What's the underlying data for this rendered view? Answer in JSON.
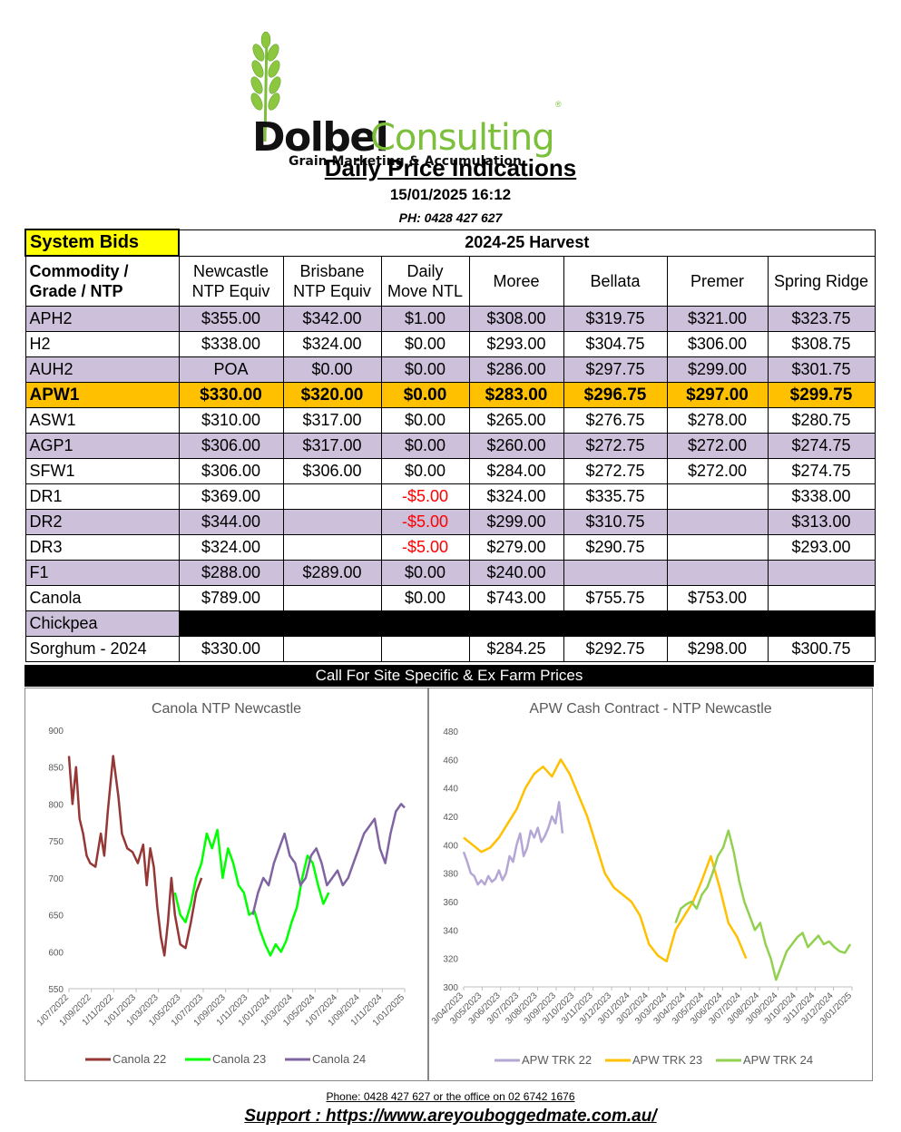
{
  "logo": {
    "name_part1": "Dolbel",
    "name_part2": "Consulting",
    "tagline": "Grain Marketing & Accumulation",
    "reg": "®"
  },
  "title": "Daily Price Indications",
  "datetime": "15/01/2025 16:12",
  "phone": "PH: 0428 427 627",
  "table": {
    "system_bids": "System Bids",
    "harvest": "2024-25 Harvest",
    "columns": [
      "Commodity / Grade / NTP",
      "Newcastle NTP Equiv",
      "Brisbane NTP Equiv",
      "Daily Move NTL",
      "Moree",
      "Bellata",
      "Premer",
      "Spring Ridge"
    ],
    "col0_line1": "Commodity /",
    "col0_line2": "Grade / NTP",
    "col1_line1": "Newcastle",
    "col1_line2": "NTP Equiv",
    "col2_line1": "Brisbane",
    "col2_line2": "NTP Equiv",
    "col3_line1": "Daily",
    "col3_line2": "Move NTL",
    "rows": [
      {
        "grade": "APH2",
        "newcastle": "$355.00",
        "brisbane": "$342.00",
        "move": "$1.00",
        "moree": "$308.00",
        "bellata": "$319.75",
        "premer": "$321.00",
        "spring": "$323.75"
      },
      {
        "grade": "H2",
        "newcastle": "$338.00",
        "brisbane": "$324.00",
        "move": "$0.00",
        "moree": "$293.00",
        "bellata": "$304.75",
        "premer": "$306.00",
        "spring": "$308.75"
      },
      {
        "grade": "AUH2",
        "newcastle": "POA",
        "brisbane": "$0.00",
        "move": "$0.00",
        "moree": "$286.00",
        "bellata": "$297.75",
        "premer": "$299.00",
        "spring": "$301.75"
      },
      {
        "grade": "APW1",
        "newcastle": "$330.00",
        "brisbane": "$320.00",
        "move": "$0.00",
        "moree": "$283.00",
        "bellata": "$296.75",
        "premer": "$297.00",
        "spring": "$299.75"
      },
      {
        "grade": "ASW1",
        "newcastle": "$310.00",
        "brisbane": "$317.00",
        "move": "$0.00",
        "moree": "$265.00",
        "bellata": "$276.75",
        "premer": "$278.00",
        "spring": "$280.75"
      },
      {
        "grade": "AGP1",
        "newcastle": "$306.00",
        "brisbane": "$317.00",
        "move": "$0.00",
        "moree": "$260.00",
        "bellata": "$272.75",
        "premer": "$272.00",
        "spring": "$274.75"
      },
      {
        "grade": "SFW1",
        "newcastle": "$306.00",
        "brisbane": "$306.00",
        "move": "$0.00",
        "moree": "$284.00",
        "bellata": "$272.75",
        "premer": "$272.00",
        "spring": "$274.75"
      },
      {
        "grade": "DR1",
        "newcastle": "$369.00",
        "brisbane": "",
        "move": "-$5.00",
        "moree": "$324.00",
        "bellata": "$335.75",
        "premer": "",
        "spring": "$338.00"
      },
      {
        "grade": "DR2",
        "newcastle": "$344.00",
        "brisbane": "",
        "move": "-$5.00",
        "moree": "$299.00",
        "bellata": "$310.75",
        "premer": "",
        "spring": "$313.00"
      },
      {
        "grade": "DR3",
        "newcastle": "$324.00",
        "brisbane": "",
        "move": "-$5.00",
        "moree": "$279.00",
        "bellata": "$290.75",
        "premer": "",
        "spring": "$293.00"
      },
      {
        "grade": "F1",
        "newcastle": "$288.00",
        "brisbane": "$289.00",
        "move": "$0.00",
        "moree": "$240.00",
        "bellata": "",
        "premer": "",
        "spring": ""
      },
      {
        "grade": "Canola",
        "newcastle": "$789.00",
        "brisbane": "",
        "move": "$0.00",
        "moree": "$743.00",
        "bellata": "$755.75",
        "premer": "$753.00",
        "spring": ""
      },
      {
        "grade": "Chickpea",
        "newcastle": "",
        "brisbane": "",
        "move": "",
        "moree": "",
        "bellata": "",
        "premer": "",
        "spring": ""
      },
      {
        "grade": "Sorghum - 2024",
        "newcastle": "$330.00",
        "brisbane": "",
        "move": "",
        "moree": "$284.25",
        "bellata": "$292.75",
        "premer": "$298.00",
        "spring": "$300.75"
      }
    ],
    "call_bar": "Call For Site Specific & Ex Farm Prices"
  },
  "colors": {
    "system_bids_bg": "#ffff00",
    "highlight_row": "#ffc000",
    "shade_row": "#ccc0da",
    "negative": "#ff0000"
  },
  "chart_data": [
    {
      "type": "line",
      "title": "Canola NTP Newcastle",
      "ylim": [
        550,
        900
      ],
      "yticks": [
        550,
        600,
        650,
        700,
        750,
        800,
        850,
        900
      ],
      "xticks": [
        "1/07/2022",
        "1/09/2022",
        "1/11/2022",
        "1/01/2023",
        "1/03/2023",
        "1/05/2023",
        "1/07/2023",
        "1/09/2023",
        "1/11/2023",
        "1/01/2024",
        "1/03/2024",
        "1/05/2024",
        "1/07/2024",
        "1/09/2024",
        "1/11/2024",
        "1/01/2025"
      ],
      "grid": false,
      "legend_position": "bottom",
      "series": [
        {
          "name": "Canola 22",
          "color": "#953735",
          "x": [
            0,
            0.2,
            0.4,
            0.6,
            0.8,
            1.0,
            1.2,
            1.5,
            1.8,
            2.0,
            2.2,
            2.5,
            2.8,
            3.0,
            3.3,
            3.6,
            3.9,
            4.2,
            4.4,
            4.6,
            4.8,
            5.0,
            5.2,
            5.4,
            5.6,
            5.8,
            6.0,
            6.3,
            6.6,
            6.9,
            7.2,
            7.5
          ],
          "values": [
            865,
            800,
            850,
            780,
            760,
            730,
            720,
            715,
            760,
            730,
            790,
            865,
            810,
            760,
            740,
            735,
            720,
            745,
            690,
            740,
            715,
            660,
            620,
            595,
            640,
            700,
            650,
            610,
            605,
            640,
            680,
            700
          ]
        },
        {
          "name": "Canola 23",
          "color": "#00ff00",
          "x": [
            6.0,
            6.3,
            6.6,
            6.9,
            7.2,
            7.5,
            7.8,
            8.1,
            8.4,
            8.7,
            9.0,
            9.3,
            9.6,
            9.9,
            10.2,
            10.5,
            10.8,
            11.1,
            11.4,
            11.7,
            12.0,
            12.3,
            12.6,
            12.9,
            13.2,
            13.5,
            13.8,
            14.1,
            14.4,
            14.7
          ],
          "values": [
            680,
            650,
            640,
            665,
            700,
            720,
            760,
            740,
            765,
            700,
            740,
            720,
            690,
            680,
            650,
            655,
            630,
            610,
            595,
            610,
            600,
            615,
            640,
            660,
            700,
            730,
            720,
            690,
            665,
            680
          ]
        },
        {
          "name": "Canola 24",
          "color": "#8064a2",
          "x": [
            10.4,
            10.7,
            11.0,
            11.3,
            11.6,
            11.9,
            12.2,
            12.5,
            12.8,
            13.1,
            13.4,
            13.7,
            14.0,
            14.3,
            14.6,
            14.9,
            15.2,
            15.5,
            15.8,
            16.1,
            16.4,
            16.7,
            17.0,
            17.3,
            17.6,
            17.9,
            18.2,
            18.5,
            18.8,
            19.0
          ],
          "values": [
            650,
            680,
            700,
            690,
            720,
            740,
            760,
            730,
            720,
            690,
            700,
            730,
            740,
            720,
            690,
            700,
            710,
            690,
            700,
            720,
            740,
            760,
            770,
            780,
            740,
            720,
            760,
            790,
            800,
            795
          ]
        }
      ]
    },
    {
      "type": "line",
      "title": "APW Cash Contract - NTP Newcastle",
      "ylim": [
        300,
        480
      ],
      "yticks": [
        300,
        320,
        340,
        360,
        380,
        400,
        420,
        440,
        460,
        480
      ],
      "xticks": [
        "3/04/2023",
        "3/05/2023",
        "3/06/2023",
        "3/07/2023",
        "3/08/2023",
        "3/09/2023",
        "3/10/2023",
        "3/11/2023",
        "3/12/2023",
        "3/01/2024",
        "3/02/2024",
        "3/03/2024",
        "3/04/2024",
        "3/05/2024",
        "3/06/2024",
        "3/07/2024",
        "3/08/2024",
        "3/09/2024",
        "3/10/2024",
        "3/11/2024",
        "3/12/2024",
        "3/01/2025"
      ],
      "grid": false,
      "legend_position": "bottom",
      "series": [
        {
          "name": "APW TRK 22",
          "color": "#b4a7d6",
          "x": [
            0,
            0.2,
            0.4,
            0.6,
            0.8,
            1.0,
            1.2,
            1.4,
            1.6,
            1.8,
            2.0,
            2.2,
            2.4,
            2.6,
            2.8,
            3.0,
            3.2,
            3.4,
            3.6,
            3.8,
            4.0,
            4.2,
            4.4,
            4.6,
            4.8,
            5.0,
            5.2,
            5.4,
            5.6
          ],
          "values": [
            395,
            388,
            380,
            378,
            372,
            375,
            372,
            378,
            374,
            376,
            382,
            375,
            380,
            392,
            388,
            400,
            408,
            392,
            398,
            410,
            405,
            412,
            402,
            406,
            412,
            420,
            415,
            430,
            408
          ]
        },
        {
          "name": "APW TRK 23",
          "color": "#ffc000",
          "x": [
            0,
            0.5,
            1.0,
            1.5,
            2.0,
            2.5,
            3.0,
            3.5,
            4.0,
            4.5,
            5.0,
            5.5,
            6.0,
            6.5,
            7.0,
            7.5,
            8.0,
            8.5,
            9.0,
            9.5,
            10.0,
            10.5,
            11.0,
            11.5,
            12.0,
            12.5,
            13.0,
            13.5,
            14.0,
            14.5,
            15.0,
            15.5,
            16.0
          ],
          "values": [
            405,
            400,
            395,
            398,
            405,
            415,
            425,
            440,
            450,
            455,
            448,
            460,
            450,
            435,
            420,
            400,
            380,
            370,
            365,
            360,
            350,
            330,
            322,
            318,
            340,
            350,
            360,
            375,
            392,
            370,
            345,
            335,
            320
          ]
        },
        {
          "name": "APW TRK 24",
          "color": "#92d050",
          "x": [
            12.0,
            12.3,
            12.6,
            12.9,
            13.2,
            13.5,
            13.8,
            14.1,
            14.4,
            14.7,
            15.0,
            15.3,
            15.6,
            15.9,
            16.2,
            16.5,
            16.8,
            17.1,
            17.4,
            17.7,
            18.0,
            18.3,
            18.6,
            18.9,
            19.2,
            19.5,
            19.8,
            20.1,
            20.4,
            20.7,
            21.0,
            21.3,
            21.6,
            21.9
          ],
          "values": [
            345,
            355,
            358,
            360,
            355,
            365,
            370,
            380,
            392,
            398,
            410,
            395,
            375,
            360,
            350,
            340,
            345,
            330,
            320,
            305,
            315,
            325,
            330,
            335,
            338,
            328,
            332,
            336,
            330,
            332,
            328,
            325,
            324,
            330
          ]
        }
      ]
    }
  ],
  "footer": {
    "contact": "Phone: 0428 427 627 or the office on 02 6742 1676",
    "support": "Support : https://www.areyouboggedmate.com.au/"
  }
}
